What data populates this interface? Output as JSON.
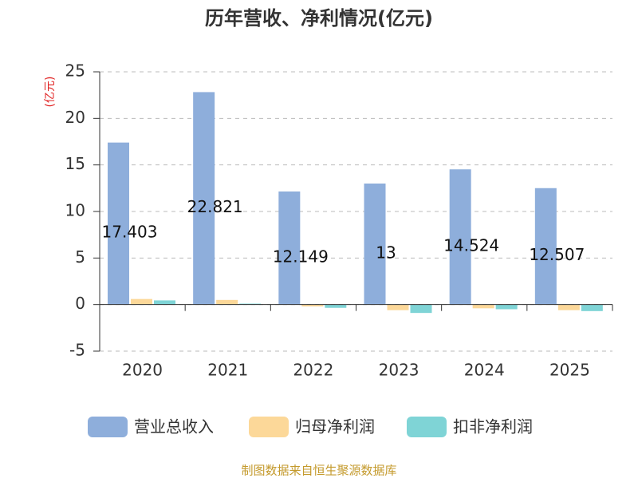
{
  "chart_data": {
    "type": "bar",
    "title": "历年营收、净利情况(亿元)",
    "y_label": "(亿元)",
    "categories": [
      "2020",
      "2021",
      "2022",
      "2023",
      "2024",
      "2025"
    ],
    "series": [
      {
        "name": "营业总收入",
        "color": "#8eaedb",
        "values": [
          17.403,
          22.821,
          12.149,
          13,
          14.524,
          12.507
        ]
      },
      {
        "name": "归母净利润",
        "color": "#fcd899",
        "values": [
          0.6,
          0.5,
          -0.2,
          -0.6,
          -0.4,
          -0.6
        ]
      },
      {
        "name": "扣非净利润",
        "color": "#7fd4d6",
        "values": [
          0.45,
          0.1,
          -0.35,
          -0.9,
          -0.5,
          -0.7
        ]
      }
    ],
    "ylim": [
      -5,
      25
    ],
    "yticks": [
      -5,
      0,
      5,
      10,
      15,
      20,
      25
    ],
    "grid": true,
    "source": "制图数据来自恒生聚源数据库"
  }
}
